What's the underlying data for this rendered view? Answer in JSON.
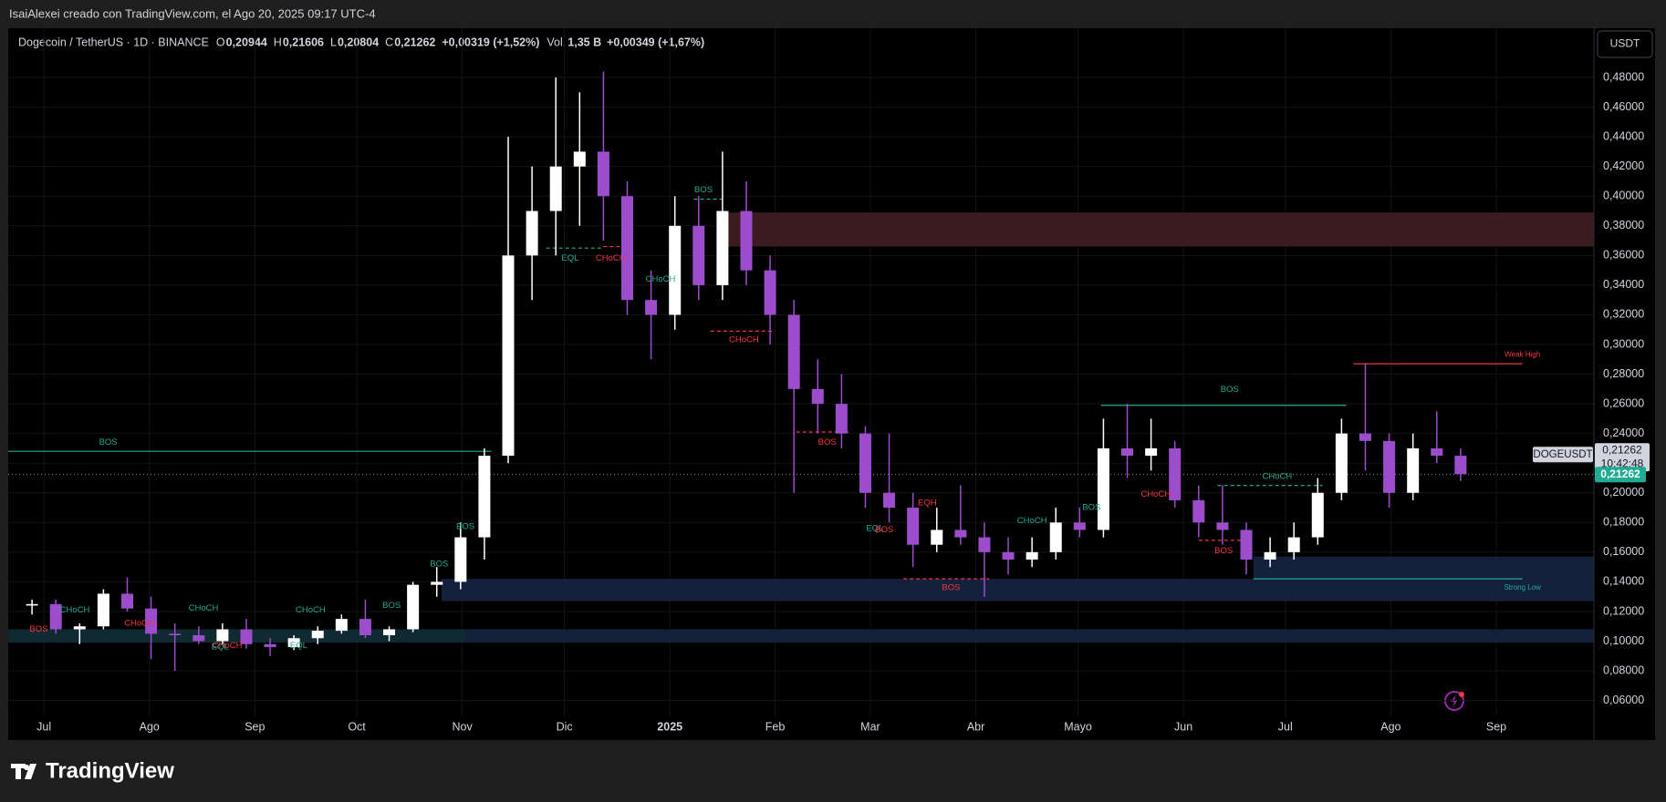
{
  "header": {
    "credit": "IsaiAlexei creado con TradingView.com, el Ago 20, 2025 09:17 UTC-4",
    "currency_button": "USDT",
    "logo": "TradingView"
  },
  "legend": {
    "symbol": "Dogecoin / TetherUS · 1D · BINANCE",
    "items": [
      {
        "key": "O",
        "value": "0,20944"
      },
      {
        "key": "H",
        "value": "0,21606"
      },
      {
        "key": "L",
        "value": "0,20804"
      },
      {
        "key": "C",
        "value": "0,21262"
      }
    ],
    "change": "+0,00319 (+1,52%)",
    "vol_key": "Vol.",
    "vol": "1,35 B",
    "vol_change": "+0,00349 (+1,67%)"
  },
  "chart_data": {
    "type": "candlestick",
    "categories": [
      null,
      null,
      null,
      null,
      null,
      null,
      null,
      null,
      null,
      null,
      null,
      null,
      null,
      null,
      null,
      null,
      null,
      null,
      null,
      null,
      null,
      null,
      null,
      null,
      null,
      null,
      null,
      null,
      null,
      null,
      null,
      null,
      null,
      null,
      null,
      null,
      null,
      null,
      null,
      null,
      null,
      null,
      null,
      null,
      null,
      null,
      null,
      null,
      null,
      null,
      null,
      null,
      null,
      null,
      null,
      null,
      null,
      null,
      null,
      null,
      null
    ],
    "open": [
      0.124,
      0.125,
      0.108,
      0.11,
      0.132,
      0.122,
      0.105,
      0.104,
      0.1,
      0.108,
      0.098,
      0.096,
      0.102,
      0.107,
      0.115,
      0.104,
      0.108,
      0.138,
      0.14,
      0.17,
      0.225,
      0.36,
      0.39,
      0.42,
      0.43,
      0.4,
      0.33,
      0.32,
      0.38,
      0.34,
      0.39,
      0.35,
      0.32,
      0.27,
      0.26,
      0.24,
      0.2,
      0.19,
      0.165,
      0.175,
      0.17,
      0.16,
      0.155,
      0.16,
      0.18,
      0.175,
      0.23,
      0.225,
      0.23,
      0.195,
      0.18,
      0.175,
      0.155,
      0.16,
      0.17,
      0.2,
      0.24,
      0.235,
      0.2,
      0.23,
      0.225
    ],
    "high": [
      0.128,
      0.128,
      0.112,
      0.135,
      0.143,
      0.13,
      0.112,
      0.11,
      0.112,
      0.115,
      0.102,
      0.104,
      0.11,
      0.118,
      0.128,
      0.11,
      0.14,
      0.15,
      0.18,
      0.23,
      0.44,
      0.42,
      0.48,
      0.47,
      0.484,
      0.41,
      0.35,
      0.4,
      0.4,
      0.43,
      0.41,
      0.36,
      0.33,
      0.29,
      0.28,
      0.245,
      0.24,
      0.2,
      0.19,
      0.205,
      0.18,
      0.17,
      0.17,
      0.19,
      0.19,
      0.25,
      0.26,
      0.25,
      0.235,
      0.205,
      0.205,
      0.18,
      0.17,
      0.18,
      0.21,
      0.25,
      0.287,
      0.24,
      0.24,
      0.255,
      0.23
    ],
    "low": [
      0.118,
      0.105,
      0.098,
      0.108,
      0.12,
      0.088,
      0.08,
      0.098,
      0.098,
      0.095,
      0.09,
      0.094,
      0.098,
      0.105,
      0.102,
      0.1,
      0.106,
      0.13,
      0.135,
      0.155,
      0.22,
      0.33,
      0.36,
      0.38,
      0.37,
      0.32,
      0.29,
      0.31,
      0.33,
      0.33,
      0.34,
      0.3,
      0.2,
      0.24,
      0.23,
      0.19,
      0.18,
      0.15,
      0.16,
      0.165,
      0.13,
      0.145,
      0.15,
      0.155,
      0.17,
      0.17,
      0.21,
      0.215,
      0.19,
      0.17,
      0.165,
      0.145,
      0.15,
      0.155,
      0.165,
      0.195,
      0.215,
      0.19,
      0.195,
      0.22,
      0.208
    ],
    "close": [
      0.125,
      0.108,
      0.11,
      0.132,
      0.122,
      0.105,
      0.104,
      0.1,
      0.108,
      0.098,
      0.096,
      0.102,
      0.107,
      0.115,
      0.104,
      0.108,
      0.138,
      0.14,
      0.17,
      0.225,
      0.36,
      0.39,
      0.42,
      0.43,
      0.4,
      0.33,
      0.32,
      0.38,
      0.34,
      0.39,
      0.35,
      0.32,
      0.27,
      0.26,
      0.24,
      0.2,
      0.19,
      0.165,
      0.175,
      0.17,
      0.16,
      0.155,
      0.16,
      0.18,
      0.175,
      0.23,
      0.225,
      0.23,
      0.195,
      0.18,
      0.175,
      0.155,
      0.16,
      0.17,
      0.2,
      0.24,
      0.235,
      0.2,
      0.23,
      0.225,
      0.21262
    ],
    "up_color": "#ffffff",
    "down_color": "#9c4dcc",
    "xlim": [
      -1,
      65.6
    ],
    "xticks": [
      {
        "value": 0.5,
        "label": "Jul"
      },
      {
        "value": 4.93,
        "label": "Ago"
      },
      {
        "value": 9.36,
        "label": "Sep"
      },
      {
        "value": 13.64,
        "label": "Oct"
      },
      {
        "value": 18.07,
        "label": "Nov"
      },
      {
        "value": 22.36,
        "label": "Dic"
      },
      {
        "value": 26.79,
        "label": "2025"
      },
      {
        "value": 31.21,
        "label": "Feb"
      },
      {
        "value": 35.21,
        "label": "Mar"
      },
      {
        "value": 39.64,
        "label": "Abr"
      },
      {
        "value": 43.93,
        "label": "Mayo"
      },
      {
        "value": 48.36,
        "label": "Jun"
      },
      {
        "value": 52.64,
        "label": "Jul"
      },
      {
        "value": 57.07,
        "label": "Ago"
      },
      {
        "value": 61.5,
        "label": "Sep"
      }
    ],
    "ylim": [
      0.05,
      0.51
    ],
    "yticks": [
      {
        "value": 0.06,
        "label": "0,06000"
      },
      {
        "value": 0.08,
        "label": "0,08000"
      },
      {
        "value": 0.1,
        "label": "0,10000"
      },
      {
        "value": 0.12,
        "label": "0,12000"
      },
      {
        "value": 0.14,
        "label": "0,14000"
      },
      {
        "value": 0.16,
        "label": "0,16000"
      },
      {
        "value": 0.18,
        "label": "0,18000"
      },
      {
        "value": 0.2,
        "label": "0,20000"
      },
      {
        "value": 0.22,
        "label": "0,22000"
      },
      {
        "value": 0.24,
        "label": "0,24000"
      },
      {
        "value": 0.26,
        "label": "0,26000"
      },
      {
        "value": 0.28,
        "label": "0,28000"
      },
      {
        "value": 0.3,
        "label": "0,30000"
      },
      {
        "value": 0.32,
        "label": "0,32000"
      },
      {
        "value": 0.34,
        "label": "0,34000"
      },
      {
        "value": 0.36,
        "label": "0,36000"
      },
      {
        "value": 0.38,
        "label": "0,38000"
      },
      {
        "value": 0.4,
        "label": "0,40000"
      },
      {
        "value": 0.42,
        "label": "0,42000"
      },
      {
        "value": 0.44,
        "label": "0,44000"
      },
      {
        "value": 0.46,
        "label": "0,46000"
      },
      {
        "value": 0.48,
        "label": "0,48000"
      }
    ],
    "grid": true,
    "zones": [
      {
        "x0": 29.0,
        "x1": 65.6,
        "top": 0.389,
        "bottom": 0.366,
        "color": "#3a1c1e"
      },
      {
        "x0": 17.2,
        "x1": 65.6,
        "top": 0.142,
        "bottom": 0.127,
        "color": "#14213d"
      },
      {
        "x0": 51.3,
        "x1": 65.6,
        "top": 0.157,
        "bottom": 0.142,
        "color": "#14213d"
      },
      {
        "x0": -1,
        "x1": 18.2,
        "top": 0.108,
        "bottom": 0.099,
        "color": "#0f2a30"
      },
      {
        "x0": 18.2,
        "x1": 65.6,
        "top": 0.108,
        "bottom": 0.099,
        "color": "#14213d"
      }
    ],
    "levels": [
      {
        "y": 0.228,
        "x0": -1,
        "x1": 19.3,
        "color": "#22ab94",
        "dashed": false
      },
      {
        "y": 0.259,
        "x0": 44.9,
        "x1": 55.2,
        "color": "#22ab94",
        "dashed": false
      },
      {
        "y": 0.287,
        "x0": 55.5,
        "x1": 62.6,
        "color": "#f23645",
        "dashed": false
      },
      {
        "y": 0.142,
        "x0": 51.3,
        "x1": 62.6,
        "color": "#22ab94",
        "dashed": false
      },
      {
        "y": 0.365,
        "x0": 21.6,
        "x1": 24.0,
        "color": "#22ab94",
        "dashed": true
      },
      {
        "y": 0.366,
        "x0": 24.0,
        "x1": 25.0,
        "color": "#f23645",
        "dashed": true
      },
      {
        "y": 0.398,
        "x0": 27.8,
        "x1": 29.0,
        "color": "#22ab94",
        "dashed": true
      },
      {
        "y": 0.309,
        "x0": 28.5,
        "x1": 31.2,
        "color": "#f23645",
        "dashed": true
      },
      {
        "y": 0.241,
        "x0": 32.1,
        "x1": 34.3,
        "color": "#f23645",
        "dashed": true
      },
      {
        "y": 0.142,
        "x0": 36.6,
        "x1": 40.2,
        "color": "#f23645",
        "dashed": true
      },
      {
        "y": 0.205,
        "x0": 49.8,
        "x1": 54.2,
        "color": "#22ab94",
        "dashed": true
      },
      {
        "y": 0.168,
        "x0": 49.0,
        "x1": 51.0,
        "color": "#f23645",
        "dashed": true
      }
    ],
    "annotations": [
      {
        "text": "BOS",
        "x": 3.2,
        "y": 0.234,
        "color": "#22ab94"
      },
      {
        "text": "BOS",
        "x": 50.3,
        "y": 0.2696,
        "color": "#22ab94"
      },
      {
        "text": "Weak High",
        "x": 62.6,
        "y": 0.293,
        "color": "#f23645"
      },
      {
        "text": "Strong Low",
        "x": 62.6,
        "y": 0.136,
        "color": "#22ab94"
      },
      {
        "text": "EQL",
        "x": 22.6,
        "y": 0.358,
        "color": "#22ab94"
      },
      {
        "text": "CHoCH",
        "x": 24.3,
        "y": 0.358,
        "color": "#f23645"
      },
      {
        "text": "BOS",
        "x": 28.2,
        "y": 0.404,
        "color": "#22ab94"
      },
      {
        "text": "CHoCH",
        "x": 26.4,
        "y": 0.344,
        "color": "#22ab94"
      },
      {
        "text": "CHoCH",
        "x": 29.9,
        "y": 0.303,
        "color": "#f23645"
      },
      {
        "text": "BOS",
        "x": 33.4,
        "y": 0.234,
        "color": "#f23645"
      },
      {
        "text": "EQH",
        "x": 37.6,
        "y": 0.193,
        "color": "#f23645"
      },
      {
        "text": "BOS",
        "x": 38.6,
        "y": 0.136,
        "color": "#f23645"
      },
      {
        "text": "BOS",
        "x": 44.5,
        "y": 0.19,
        "color": "#22ab94"
      },
      {
        "text": "CHoCH",
        "x": 42.0,
        "y": 0.181,
        "color": "#22ab94"
      },
      {
        "text": "CHoCH",
        "x": 47.2,
        "y": 0.199,
        "color": "#f23645"
      },
      {
        "text": "CHoCH",
        "x": 52.3,
        "y": 0.211,
        "color": "#22ab94"
      },
      {
        "text": "BOS",
        "x": 50.05,
        "y": 0.161,
        "color": "#f23645"
      },
      {
        "text": "EQL",
        "x": 35.4,
        "y": 0.176,
        "color": "#22ab94"
      },
      {
        "text": "BOS",
        "x": 35.8,
        "y": 0.175,
        "color": "#f23645"
      },
      {
        "text": "BOS",
        "x": 0.28,
        "y": 0.108,
        "color": "#f23645"
      },
      {
        "text": "CHoCH",
        "x": 1.8,
        "y": 0.121,
        "color": "#22ab94"
      },
      {
        "text": "CHoCH",
        "x": 4.5,
        "y": 0.112,
        "color": "#f23645"
      },
      {
        "text": "CHoCH",
        "x": 7.2,
        "y": 0.122,
        "color": "#22ab94"
      },
      {
        "text": "CHoCH",
        "x": 8.2,
        "y": 0.097,
        "color": "#f23645"
      },
      {
        "text": "EQL",
        "x": 7.9,
        "y": 0.096,
        "color": "#22ab94"
      },
      {
        "text": "CHoCH",
        "x": 11.7,
        "y": 0.121,
        "color": "#22ab94"
      },
      {
        "text": "EQL",
        "x": 11.2,
        "y": 0.097,
        "color": "#22ab94"
      },
      {
        "text": "BOS",
        "x": 15.1,
        "y": 0.124,
        "color": "#22ab94"
      },
      {
        "text": "BOS",
        "x": 17.1,
        "y": 0.152,
        "color": "#22ab94"
      },
      {
        "text": "BOS",
        "x": 18.2,
        "y": 0.177,
        "color": "#22ab94"
      }
    ],
    "price_line": {
      "value": 0.21262,
      "label": "0,21262"
    },
    "symbol_tag": "DOGEUSDT",
    "countdown": "10:42:48",
    "price_tag_color": "#22ab94"
  }
}
